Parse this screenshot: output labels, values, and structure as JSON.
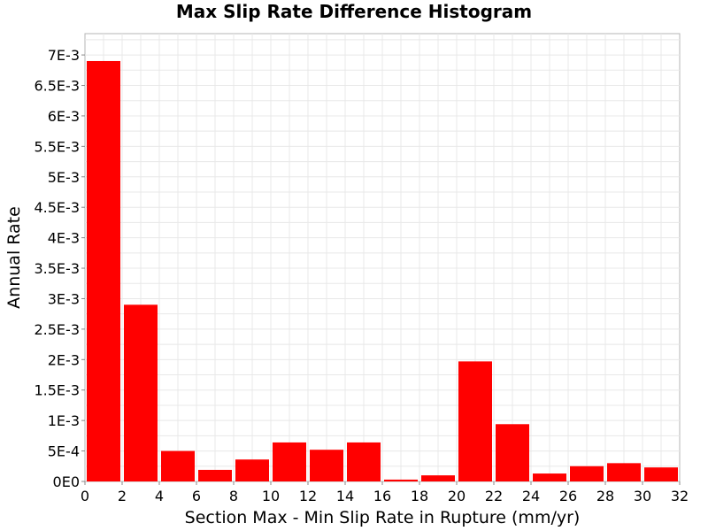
{
  "chart_data": {
    "type": "bar",
    "title": "Max Slip Rate Difference Histogram",
    "xlabel": "Section Max - Min Slip Rate in Rupture (mm/yr)",
    "ylabel": "Annual Rate",
    "xlim": [
      0,
      32
    ],
    "ylim": [
      0,
      0.00735
    ],
    "bin_width": 2,
    "x_ticks": [
      0,
      2,
      4,
      6,
      8,
      10,
      12,
      14,
      16,
      18,
      20,
      22,
      24,
      26,
      28,
      30,
      32
    ],
    "x_tick_labels": [
      "0",
      "2",
      "4",
      "6",
      "8",
      "10",
      "12",
      "14",
      "16",
      "18",
      "20",
      "22",
      "24",
      "26",
      "28",
      "30",
      "32"
    ],
    "y_ticks": [
      0,
      0.0005,
      0.001,
      0.0015,
      0.002,
      0.0025,
      0.003,
      0.0035,
      0.004,
      0.0045,
      0.005,
      0.0055,
      0.006,
      0.0065,
      0.007
    ],
    "y_tick_labels": [
      "0E0",
      "5E-4",
      "1E-3",
      "1.5E-3",
      "2E-3",
      "2.5E-3",
      "3E-3",
      "3.5E-3",
      "4E-3",
      "4.5E-3",
      "5E-3",
      "5.5E-3",
      "6E-3",
      "6.5E-3",
      "7E-3"
    ],
    "x": [
      1,
      3,
      5,
      7,
      9,
      11,
      13,
      15,
      17,
      19,
      21,
      23,
      25,
      27,
      29,
      31
    ],
    "values": [
      0.0069,
      0.0029,
      0.0005,
      0.00019,
      0.00036,
      0.00064,
      0.00052,
      0.00064,
      3e-05,
      0.0001,
      0.00197,
      0.00094,
      0.00013,
      0.00025,
      0.0003,
      0.00023
    ],
    "bar_color": "#ff0000",
    "grid": true,
    "legend": "none"
  }
}
